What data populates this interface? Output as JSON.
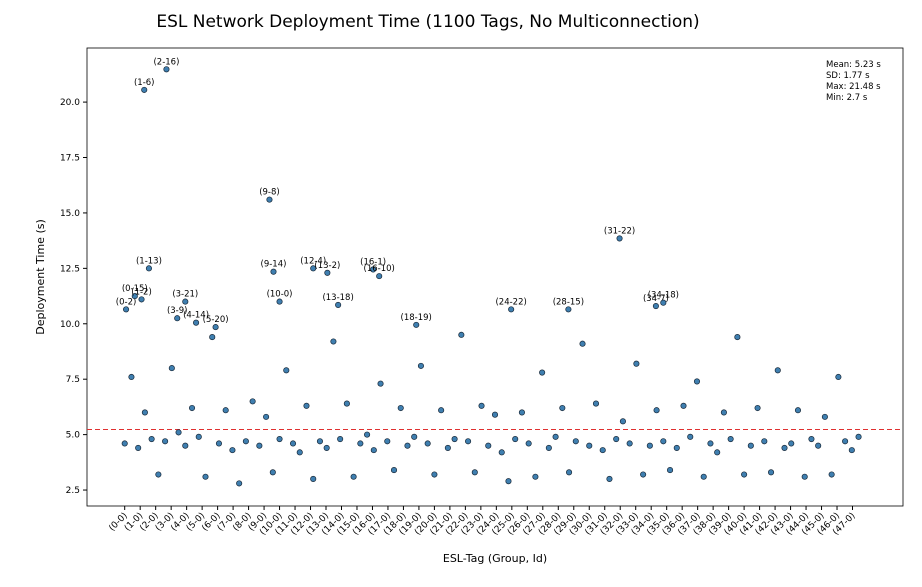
{
  "chart_data": {
    "type": "scatter",
    "title": "ESL Network Deployment Time (1100 Tags, No Multiconnection)",
    "x_label": "ESL-Tag (Group, Id)",
    "y_label": "Deployment Time (s)",
    "xlim": [
      -56,
      1156
    ],
    "ylim": [
      1.78,
      22.44
    ],
    "yticks": [
      {
        "value": 2.5,
        "label": "2.5"
      },
      {
        "value": 5,
        "label": "5.0"
      },
      {
        "value": 7.5,
        "label": "7.5"
      },
      {
        "value": 10,
        "label": "10.0"
      },
      {
        "value": 12.5,
        "label": "12.5"
      },
      {
        "value": 15,
        "label": "15.0"
      },
      {
        "value": 17.5,
        "label": "17.5"
      },
      {
        "value": 20,
        "label": "20.0"
      }
    ],
    "xticks": [
      {
        "value": 0,
        "label": "(0-0)"
      },
      {
        "value": 23,
        "label": "(1-0)"
      },
      {
        "value": 46,
        "label": "(2-0)"
      },
      {
        "value": 69,
        "label": "(3-0)"
      },
      {
        "value": 92,
        "label": "(4-0)"
      },
      {
        "value": 115,
        "label": "(5-0)"
      },
      {
        "value": 138,
        "label": "(6-0)"
      },
      {
        "value": 161,
        "label": "(7-0)"
      },
      {
        "value": 184,
        "label": "(8-0)"
      },
      {
        "value": 207,
        "label": "(9-0)"
      },
      {
        "value": 230,
        "label": "(10-0)"
      },
      {
        "value": 253,
        "label": "(11-0)"
      },
      {
        "value": 276,
        "label": "(12-0)"
      },
      {
        "value": 299,
        "label": "(13-0)"
      },
      {
        "value": 322,
        "label": "(14-0)"
      },
      {
        "value": 345,
        "label": "(15-0)"
      },
      {
        "value": 368,
        "label": "(16-0)"
      },
      {
        "value": 391,
        "label": "(17-0)"
      },
      {
        "value": 414,
        "label": "(18-0)"
      },
      {
        "value": 437,
        "label": "(19-0)"
      },
      {
        "value": 460,
        "label": "(20-0)"
      },
      {
        "value": 483,
        "label": "(21-0)"
      },
      {
        "value": 506,
        "label": "(22-0)"
      },
      {
        "value": 529,
        "label": "(23-0)"
      },
      {
        "value": 552,
        "label": "(24-0)"
      },
      {
        "value": 575,
        "label": "(25-0)"
      },
      {
        "value": 598,
        "label": "(26-0)"
      },
      {
        "value": 621,
        "label": "(27-0)"
      },
      {
        "value": 644,
        "label": "(28-0)"
      },
      {
        "value": 667,
        "label": "(29-0)"
      },
      {
        "value": 690,
        "label": "(30-0)"
      },
      {
        "value": 713,
        "label": "(31-0)"
      },
      {
        "value": 736,
        "label": "(32-0)"
      },
      {
        "value": 759,
        "label": "(33-0)"
      },
      {
        "value": 782,
        "label": "(34-0)"
      },
      {
        "value": 805,
        "label": "(35-0)"
      },
      {
        "value": 828,
        "label": "(36-0)"
      },
      {
        "value": 851,
        "label": "(37-0)"
      },
      {
        "value": 874,
        "label": "(38-0)"
      },
      {
        "value": 897,
        "label": "(39-0)"
      },
      {
        "value": 920,
        "label": "(40-0)"
      },
      {
        "value": 943,
        "label": "(41-0)"
      },
      {
        "value": 966,
        "label": "(42-0)"
      },
      {
        "value": 989,
        "label": "(43-0)"
      },
      {
        "value": 1012,
        "label": "(44-0)"
      },
      {
        "value": 1035,
        "label": "(45-0)"
      },
      {
        "value": 1058,
        "label": "(46-0)"
      },
      {
        "value": 1081,
        "label": "(47-0)"
      }
    ],
    "series": [
      {
        "color": "#3f7fb0",
        "x": [
          0,
          10,
          20,
          30,
          40,
          50,
          60,
          70,
          80,
          90,
          100,
          110,
          120,
          130,
          140,
          150,
          160,
          170,
          180,
          190,
          200,
          210,
          220,
          230,
          240,
          250,
          260,
          270,
          280,
          290,
          300,
          310,
          320,
          330,
          340,
          350,
          360,
          370,
          380,
          390,
          400,
          410,
          420,
          430,
          440,
          450,
          460,
          470,
          480,
          490,
          500,
          510,
          520,
          530,
          540,
          550,
          560,
          570,
          580,
          590,
          600,
          610,
          620,
          630,
          640,
          650,
          660,
          670,
          680,
          690,
          700,
          710,
          720,
          730,
          740,
          750,
          760,
          770,
          780,
          790,
          800,
          810,
          820,
          830,
          840,
          850,
          860,
          870,
          880,
          890,
          900,
          910,
          920,
          930,
          940,
          950,
          960,
          970,
          980,
          990,
          1000,
          1010,
          1020,
          1030,
          1040,
          1050,
          1060,
          1070,
          1080,
          1090
        ],
        "values": [
          4.6,
          7.6,
          4.4,
          6.0,
          4.8,
          3.2,
          4.7,
          8.0,
          5.1,
          4.5,
          6.2,
          4.9,
          3.1,
          9.4,
          4.6,
          6.1,
          4.3,
          2.8,
          4.7,
          6.5,
          4.5,
          5.8,
          3.3,
          4.8,
          7.9,
          4.6,
          4.2,
          6.3,
          3.0,
          4.7,
          4.4,
          9.2,
          4.8,
          6.4,
          3.1,
          4.6,
          5.0,
          4.3,
          7.3,
          4.7,
          3.4,
          6.2,
          4.5,
          4.9,
          8.1,
          4.6,
          3.2,
          6.1,
          4.4,
          4.8,
          9.5,
          4.7,
          3.3,
          6.3,
          4.5,
          5.9,
          4.2,
          2.9,
          4.8,
          6.0,
          4.6,
          3.1,
          7.8,
          4.4,
          4.9,
          6.2,
          3.3,
          4.7,
          9.1,
          4.5,
          6.4,
          4.3,
          3.0,
          4.8,
          5.6,
          4.6,
          8.2,
          3.2,
          4.5,
          6.1,
          4.7,
          3.4,
          4.4,
          6.3,
          4.9,
          7.4,
          3.1,
          4.6,
          4.2,
          6.0,
          4.8,
          9.4,
          3.2,
          4.5,
          6.2,
          4.7,
          3.3,
          7.9,
          4.4,
          4.6,
          6.1,
          3.1,
          4.8,
          4.5,
          5.8,
          3.2,
          7.6,
          4.7,
          4.3,
          4.9
        ]
      }
    ],
    "annotations": [
      {
        "x": 2,
        "y": 10.65,
        "label": "(0-2)"
      },
      {
        "x": 15,
        "y": 11.25,
        "label": "(0-15)"
      },
      {
        "x": 25,
        "y": 11.1,
        "label": "(1-2)"
      },
      {
        "x": 29,
        "y": 20.55,
        "label": "(1-6)"
      },
      {
        "x": 62,
        "y": 21.48,
        "label": "(2-16)"
      },
      {
        "x": 36,
        "y": 12.5,
        "label": "(1-13)"
      },
      {
        "x": 90,
        "y": 11.0,
        "label": "(3-21)"
      },
      {
        "x": 78,
        "y": 10.25,
        "label": "(3-9)"
      },
      {
        "x": 106,
        "y": 10.05,
        "label": "(4-14)"
      },
      {
        "x": 135,
        "y": 9.85,
        "label": "(5-20)"
      },
      {
        "x": 215,
        "y": 15.6,
        "label": "(9-8)"
      },
      {
        "x": 221,
        "y": 12.35,
        "label": "(9-14)"
      },
      {
        "x": 230,
        "y": 11.0,
        "label": "(10-0)"
      },
      {
        "x": 280,
        "y": 12.5,
        "label": "(12-4)"
      },
      {
        "x": 301,
        "y": 12.3,
        "label": "(13-2)"
      },
      {
        "x": 317,
        "y": 10.85,
        "label": "(13-18)"
      },
      {
        "x": 369,
        "y": 12.45,
        "label": "(16-1)"
      },
      {
        "x": 378,
        "y": 12.15,
        "label": "(16-10)"
      },
      {
        "x": 433,
        "y": 9.95,
        "label": "(18-19)"
      },
      {
        "x": 574,
        "y": 10.65,
        "label": "(24-22)"
      },
      {
        "x": 659,
        "y": 10.65,
        "label": "(28-15)"
      },
      {
        "x": 735,
        "y": 13.85,
        "label": "(31-22)"
      },
      {
        "x": 789,
        "y": 10.8,
        "label": "(34-7)"
      },
      {
        "x": 800,
        "y": 10.95,
        "label": "(34-18)"
      }
    ],
    "mean_line": {
      "value": 5.23,
      "color": "#e03030"
    },
    "stats": [
      {
        "text": "Mean: 5.23 s",
        "color": "#e03030"
      },
      {
        "text": "SD: 1.77 s",
        "color": "#000000"
      },
      {
        "text": "Max: 21.48 s",
        "color": "#000000"
      },
      {
        "text": "Min: 2.7 s",
        "color": "#000000"
      }
    ]
  }
}
